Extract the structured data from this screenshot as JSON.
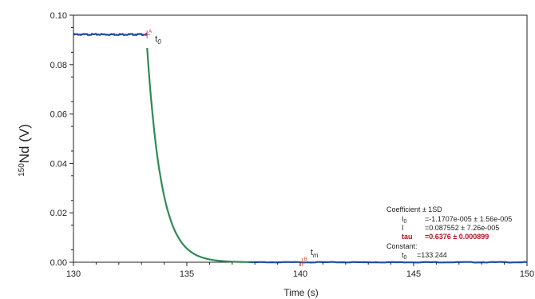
{
  "chart_data": {
    "type": "line",
    "xlabel": "Time (s)",
    "ylabel": {
      "superscript": "150",
      "main": "Nd (V)"
    },
    "xlim": [
      130,
      150
    ],
    "ylim": [
      0,
      0.1
    ],
    "xticks": [
      "130",
      "135",
      "140",
      "145",
      "150"
    ],
    "yticks": [
      "0.00",
      "0.02",
      "0.04",
      "0.06",
      "0.08",
      "0.10"
    ],
    "series": [
      {
        "color": "#1f4e9c",
        "segments": [
          {
            "kind": "plateau",
            "x": [
              130.0,
              133.25
            ],
            "y": 0.0922
          },
          {
            "kind": "tail",
            "x": [
              137.7,
              150.0
            ],
            "y": 0.0
          }
        ]
      },
      {
        "color": "#2e8b57",
        "segments": [
          {
            "kind": "decay",
            "t0": 133.244,
            "I0": -1.1707e-05,
            "I": 0.087552,
            "tau": 0.6376,
            "x": [
              133.25,
              137.8
            ]
          }
        ]
      }
    ],
    "cursors": [
      {
        "letter": "A",
        "label": "t",
        "sub": "0",
        "x": 133.244,
        "y": 0.0922
      },
      {
        "letter": "B",
        "label": "t",
        "sub": "m",
        "x": 140.1,
        "y": 0.0
      }
    ],
    "fit_box": {
      "header": "Coefficient ± 1SD",
      "rows": [
        {
          "name": "I",
          "sub": "0",
          "value": "=-1.1707e-005 ± 1.56e-005",
          "emphasis": false
        },
        {
          "name": "I",
          "sub": "",
          "value": "=0.087552 ± 7.26e-005",
          "emphasis": false
        },
        {
          "name": "tau",
          "sub": "",
          "value": "=0.6376 ± 0.000899",
          "emphasis": true
        }
      ],
      "constant_header": "Constant:",
      "constant": {
        "name": "t",
        "sub": "0",
        "value": "=133.244"
      }
    }
  }
}
